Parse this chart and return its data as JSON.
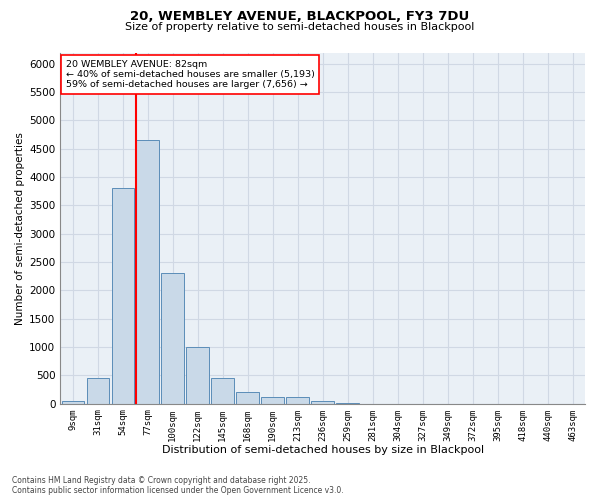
{
  "title1": "20, WEMBLEY AVENUE, BLACKPOOL, FY3 7DU",
  "title2": "Size of property relative to semi-detached houses in Blackpool",
  "xlabel": "Distribution of semi-detached houses by size in Blackpool",
  "ylabel": "Number of semi-detached properties",
  "bin_labels": [
    "9sqm",
    "31sqm",
    "54sqm",
    "77sqm",
    "100sqm",
    "122sqm",
    "145sqm",
    "168sqm",
    "190sqm",
    "213sqm",
    "236sqm",
    "259sqm",
    "281sqm",
    "304sqm",
    "327sqm",
    "349sqm",
    "372sqm",
    "395sqm",
    "418sqm",
    "440sqm",
    "463sqm"
  ],
  "bar_heights": [
    50,
    450,
    3800,
    4650,
    2300,
    1000,
    450,
    200,
    120,
    110,
    55,
    5,
    2,
    1,
    1,
    0,
    0,
    0,
    0,
    0,
    0
  ],
  "bar_color": "#c9d9e8",
  "bar_edge_color": "#5b8db8",
  "annotation_text": "20 WEMBLEY AVENUE: 82sqm\n← 40% of semi-detached houses are smaller (5,193)\n59% of semi-detached houses are larger (7,656) →",
  "ylim": [
    0,
    6200
  ],
  "yticks": [
    0,
    500,
    1000,
    1500,
    2000,
    2500,
    3000,
    3500,
    4000,
    4500,
    5000,
    5500,
    6000
  ],
  "grid_color": "#d0d8e4",
  "background_color": "#eaf0f6",
  "footnote": "Contains HM Land Registry data © Crown copyright and database right 2025.\nContains public sector information licensed under the Open Government Licence v3.0."
}
